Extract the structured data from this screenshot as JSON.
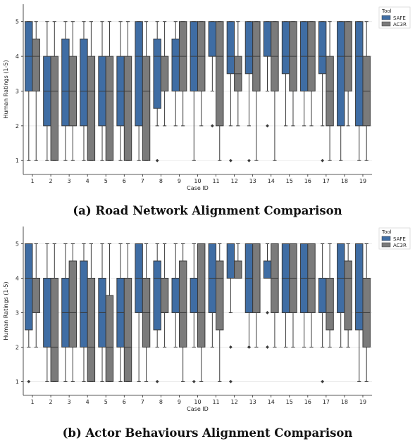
{
  "colors": {
    "SAFE": "#3f6da4",
    "AC3R": "#7b7b7b",
    "outline": "#3a3a3a",
    "grid": "#e6e6e6"
  },
  "chart_data": [
    {
      "type": "box",
      "caption": "(a) Road Network Alignment Comparison",
      "xlabel": "Case ID",
      "ylabel": "Human Ratings (1-5)",
      "ylim": [
        0.6,
        5.5
      ],
      "yticks": [
        1,
        2,
        3,
        4,
        5
      ],
      "grid": true,
      "legend": {
        "title": "Tool",
        "entries": [
          "SAFE",
          "AC3R"
        ],
        "position": "right"
      },
      "categories": [
        "1",
        "2",
        "3",
        "4",
        "5",
        "6",
        "7",
        "8",
        "9",
        "10",
        "11",
        "12",
        "13",
        "14",
        "15",
        "16",
        "17",
        "18",
        "19"
      ],
      "series": [
        {
          "name": "SAFE",
          "boxes": [
            {
              "min": 1,
              "q1": 3,
              "median": 4,
              "q3": 5,
              "max": 5,
              "outliers": []
            },
            {
              "min": 1,
              "q1": 2,
              "median": 3,
              "q3": 4,
              "max": 5,
              "outliers": []
            },
            {
              "min": 1,
              "q1": 2,
              "median": 3,
              "q3": 4.5,
              "max": 5,
              "outliers": []
            },
            {
              "min": 1,
              "q1": 2,
              "median": 3,
              "q3": 4.5,
              "max": 5,
              "outliers": []
            },
            {
              "min": 1,
              "q1": 2,
              "median": 3,
              "q3": 4,
              "max": 5,
              "outliers": []
            },
            {
              "min": 1,
              "q1": 2,
              "median": 3,
              "q3": 4,
              "max": 5,
              "outliers": []
            },
            {
              "min": 1,
              "q1": 2,
              "median": 4,
              "q3": 5,
              "max": 5,
              "outliers": []
            },
            {
              "min": 2,
              "q1": 2.5,
              "median": 4,
              "q3": 4.5,
              "max": 5,
              "outliers": [
                1
              ]
            },
            {
              "min": 2,
              "q1": 3,
              "median": 4,
              "q3": 4.5,
              "max": 5,
              "outliers": []
            },
            {
              "min": 1,
              "q1": 3,
              "median": 4,
              "q3": 5,
              "max": 5,
              "outliers": []
            },
            {
              "min": 3,
              "q1": 4,
              "median": 4,
              "q3": 5,
              "max": 5,
              "outliers": [
                2
              ]
            },
            {
              "min": 2,
              "q1": 3.5,
              "median": 4,
              "q3": 5,
              "max": 5,
              "outliers": [
                1
              ]
            },
            {
              "min": 2,
              "q1": 3.5,
              "median": 4,
              "q3": 5,
              "max": 5,
              "outliers": [
                1
              ]
            },
            {
              "min": 3,
              "q1": 4,
              "median": 4,
              "q3": 5,
              "max": 5,
              "outliers": [
                2
              ]
            },
            {
              "min": 2,
              "q1": 3.5,
              "median": 4,
              "q3": 5,
              "max": 5,
              "outliers": []
            },
            {
              "min": 2,
              "q1": 3,
              "median": 4,
              "q3": 5,
              "max": 5,
              "outliers": []
            },
            {
              "min": 2,
              "q1": 3.5,
              "median": 4,
              "q3": 5,
              "max": 5,
              "outliers": [
                1
              ]
            },
            {
              "min": 1,
              "q1": 2,
              "median": 4,
              "q3": 5,
              "max": 5,
              "outliers": []
            },
            {
              "min": 1,
              "q1": 2,
              "median": 4,
              "q3": 5,
              "max": 5,
              "outliers": []
            }
          ]
        },
        {
          "name": "AC3R",
          "boxes": [
            {
              "min": 1,
              "q1": 3,
              "median": 4,
              "q3": 4.5,
              "max": 5,
              "outliers": []
            },
            {
              "min": 1,
              "q1": 1,
              "median": 3,
              "q3": 4,
              "max": 5,
              "outliers": []
            },
            {
              "min": 1,
              "q1": 2,
              "median": 3,
              "q3": 4,
              "max": 5,
              "outliers": []
            },
            {
              "min": 1,
              "q1": 1,
              "median": 3,
              "q3": 4,
              "max": 5,
              "outliers": []
            },
            {
              "min": 1,
              "q1": 1,
              "median": 3,
              "q3": 4,
              "max": 5,
              "outliers": []
            },
            {
              "min": 1,
              "q1": 1,
              "median": 3,
              "q3": 4,
              "max": 5,
              "outliers": []
            },
            {
              "min": 1,
              "q1": 1,
              "median": 3,
              "q3": 4,
              "max": 5,
              "outliers": []
            },
            {
              "min": 2,
              "q1": 3,
              "median": 4,
              "q3": 4,
              "max": 5,
              "outliers": []
            },
            {
              "min": 2,
              "q1": 3,
              "median": 4,
              "q3": 5,
              "max": 5,
              "outliers": []
            },
            {
              "min": 2,
              "q1": 3,
              "median": 4,
              "q3": 5,
              "max": 5,
              "outliers": []
            },
            {
              "min": 1,
              "q1": 2,
              "median": 4,
              "q3": 5,
              "max": 5,
              "outliers": []
            },
            {
              "min": 2,
              "q1": 3,
              "median": 3.5,
              "q3": 4,
              "max": 5,
              "outliers": []
            },
            {
              "min": 1,
              "q1": 3,
              "median": 4,
              "q3": 5,
              "max": 5,
              "outliers": []
            },
            {
              "min": 1,
              "q1": 3,
              "median": 4,
              "q3": 5,
              "max": 5,
              "outliers": []
            },
            {
              "min": 2,
              "q1": 3,
              "median": 4,
              "q3": 5,
              "max": 5,
              "outliers": []
            },
            {
              "min": 2,
              "q1": 3,
              "median": 4,
              "q3": 5,
              "max": 5,
              "outliers": []
            },
            {
              "min": 1,
              "q1": 2,
              "median": 3,
              "q3": 4,
              "max": 5,
              "outliers": []
            },
            {
              "min": 2,
              "q1": 3,
              "median": 4,
              "q3": 5,
              "max": 5,
              "outliers": []
            },
            {
              "min": 1,
              "q1": 2,
              "median": 3,
              "q3": 4,
              "max": 5,
              "outliers": []
            }
          ]
        }
      ]
    },
    {
      "type": "box",
      "caption": "(b) Actor Behaviours Alignment Comparison",
      "xlabel": "Case ID",
      "ylabel": "Human Ratings (1-5)",
      "ylim": [
        0.6,
        5.5
      ],
      "yticks": [
        1,
        2,
        3,
        4,
        5
      ],
      "grid": true,
      "legend": {
        "title": "Tool",
        "entries": [
          "SAFE",
          "AC3R"
        ],
        "position": "right"
      },
      "categories": [
        "1",
        "2",
        "3",
        "4",
        "5",
        "6",
        "7",
        "8",
        "9",
        "10",
        "11",
        "12",
        "13",
        "14",
        "15",
        "16",
        "17",
        "18",
        "19"
      ],
      "series": [
        {
          "name": "SAFE",
          "boxes": [
            {
              "min": 2,
              "q1": 2.5,
              "median": 4,
              "q3": 5,
              "max": 5,
              "outliers": [
                1
              ]
            },
            {
              "min": 1,
              "q1": 2,
              "median": 2,
              "q3": 4,
              "max": 5,
              "outliers": []
            },
            {
              "min": 1,
              "q1": 2,
              "median": 3,
              "q3": 4,
              "max": 5,
              "outliers": []
            },
            {
              "min": 1,
              "q1": 2,
              "median": 3,
              "q3": 4.5,
              "max": 5,
              "outliers": []
            },
            {
              "min": 1,
              "q1": 2,
              "median": 3,
              "q3": 4,
              "max": 5,
              "outliers": []
            },
            {
              "min": 1,
              "q1": 2,
              "median": 3,
              "q3": 4,
              "max": 5,
              "outliers": []
            },
            {
              "min": 1,
              "q1": 3,
              "median": 4,
              "q3": 5,
              "max": 5,
              "outliers": []
            },
            {
              "min": 2,
              "q1": 2.5,
              "median": 4,
              "q3": 4.5,
              "max": 5,
              "outliers": [
                1
              ]
            },
            {
              "min": 2,
              "q1": 3,
              "median": 4,
              "q3": 4,
              "max": 5,
              "outliers": []
            },
            {
              "min": 2,
              "q1": 3,
              "median": 4,
              "q3": 4,
              "max": 5,
              "outliers": [
                1
              ]
            },
            {
              "min": 2,
              "q1": 3,
              "median": 4,
              "q3": 5,
              "max": 5,
              "outliers": []
            },
            {
              "min": 3,
              "q1": 4,
              "median": 4,
              "q3": 5,
              "max": 5,
              "outliers": [
                2,
                1
              ]
            },
            {
              "min": 2,
              "q1": 3,
              "median": 4,
              "q3": 5,
              "max": 5,
              "outliers": [
                2
              ]
            },
            {
              "min": 4,
              "q1": 4,
              "median": 4,
              "q3": 4.5,
              "max": 5,
              "outliers": [
                3,
                2
              ]
            },
            {
              "min": 2,
              "q1": 3,
              "median": 4,
              "q3": 5,
              "max": 5,
              "outliers": []
            },
            {
              "min": 2,
              "q1": 3,
              "median": 4,
              "q3": 5,
              "max": 5,
              "outliers": []
            },
            {
              "min": 2,
              "q1": 3,
              "median": 4,
              "q3": 4,
              "max": 5,
              "outliers": [
                1
              ]
            },
            {
              "min": 2,
              "q1": 3,
              "median": 4,
              "q3": 5,
              "max": 5,
              "outliers": []
            },
            {
              "min": 1,
              "q1": 2.5,
              "median": 3,
              "q3": 5,
              "max": 5,
              "outliers": []
            }
          ]
        },
        {
          "name": "AC3R",
          "boxes": [
            {
              "min": 2,
              "q1": 3,
              "median": 4,
              "q3": 4,
              "max": 5,
              "outliers": []
            },
            {
              "min": 1,
              "q1": 1,
              "median": 2,
              "q3": 4,
              "max": 5,
              "outliers": []
            },
            {
              "min": 1,
              "q1": 2,
              "median": 3,
              "q3": 4.5,
              "max": 5,
              "outliers": []
            },
            {
              "min": 1,
              "q1": 1,
              "median": 2,
              "q3": 4,
              "max": 5,
              "outliers": []
            },
            {
              "min": 1,
              "q1": 1,
              "median": 2,
              "q3": 3.5,
              "max": 5,
              "outliers": []
            },
            {
              "min": 1,
              "q1": 1,
              "median": 2,
              "q3": 4,
              "max": 5,
              "outliers": []
            },
            {
              "min": 1,
              "q1": 2,
              "median": 3,
              "q3": 4,
              "max": 5,
              "outliers": []
            },
            {
              "min": 2,
              "q1": 3,
              "median": 3,
              "q3": 4,
              "max": 5,
              "outliers": []
            },
            {
              "min": 1,
              "q1": 2,
              "median": 3,
              "q3": 4.5,
              "max": 5,
              "outliers": []
            },
            {
              "min": 1,
              "q1": 2,
              "median": 3,
              "q3": 5,
              "max": 5,
              "outliers": []
            },
            {
              "min": 1,
              "q1": 2.5,
              "median": 4,
              "q3": 4.5,
              "max": 5,
              "outliers": []
            },
            {
              "min": 4,
              "q1": 4,
              "median": 4,
              "q3": 4.5,
              "max": 5,
              "outliers": []
            },
            {
              "min": 2,
              "q1": 3,
              "median": 5,
              "q3": 5,
              "max": 5,
              "outliers": []
            },
            {
              "min": 2,
              "q1": 3,
              "median": 4,
              "q3": 5,
              "max": 5,
              "outliers": []
            },
            {
              "min": 2,
              "q1": 3,
              "median": 4,
              "q3": 5,
              "max": 5,
              "outliers": []
            },
            {
              "min": 2,
              "q1": 3,
              "median": 4,
              "q3": 5,
              "max": 5,
              "outliers": []
            },
            {
              "min": 2,
              "q1": 2.5,
              "median": 3,
              "q3": 4,
              "max": 5,
              "outliers": []
            },
            {
              "min": 2,
              "q1": 2.5,
              "median": 4,
              "q3": 4.5,
              "max": 5,
              "outliers": []
            },
            {
              "min": 1,
              "q1": 2,
              "median": 3,
              "q3": 4,
              "max": 5,
              "outliers": []
            }
          ]
        }
      ]
    }
  ]
}
